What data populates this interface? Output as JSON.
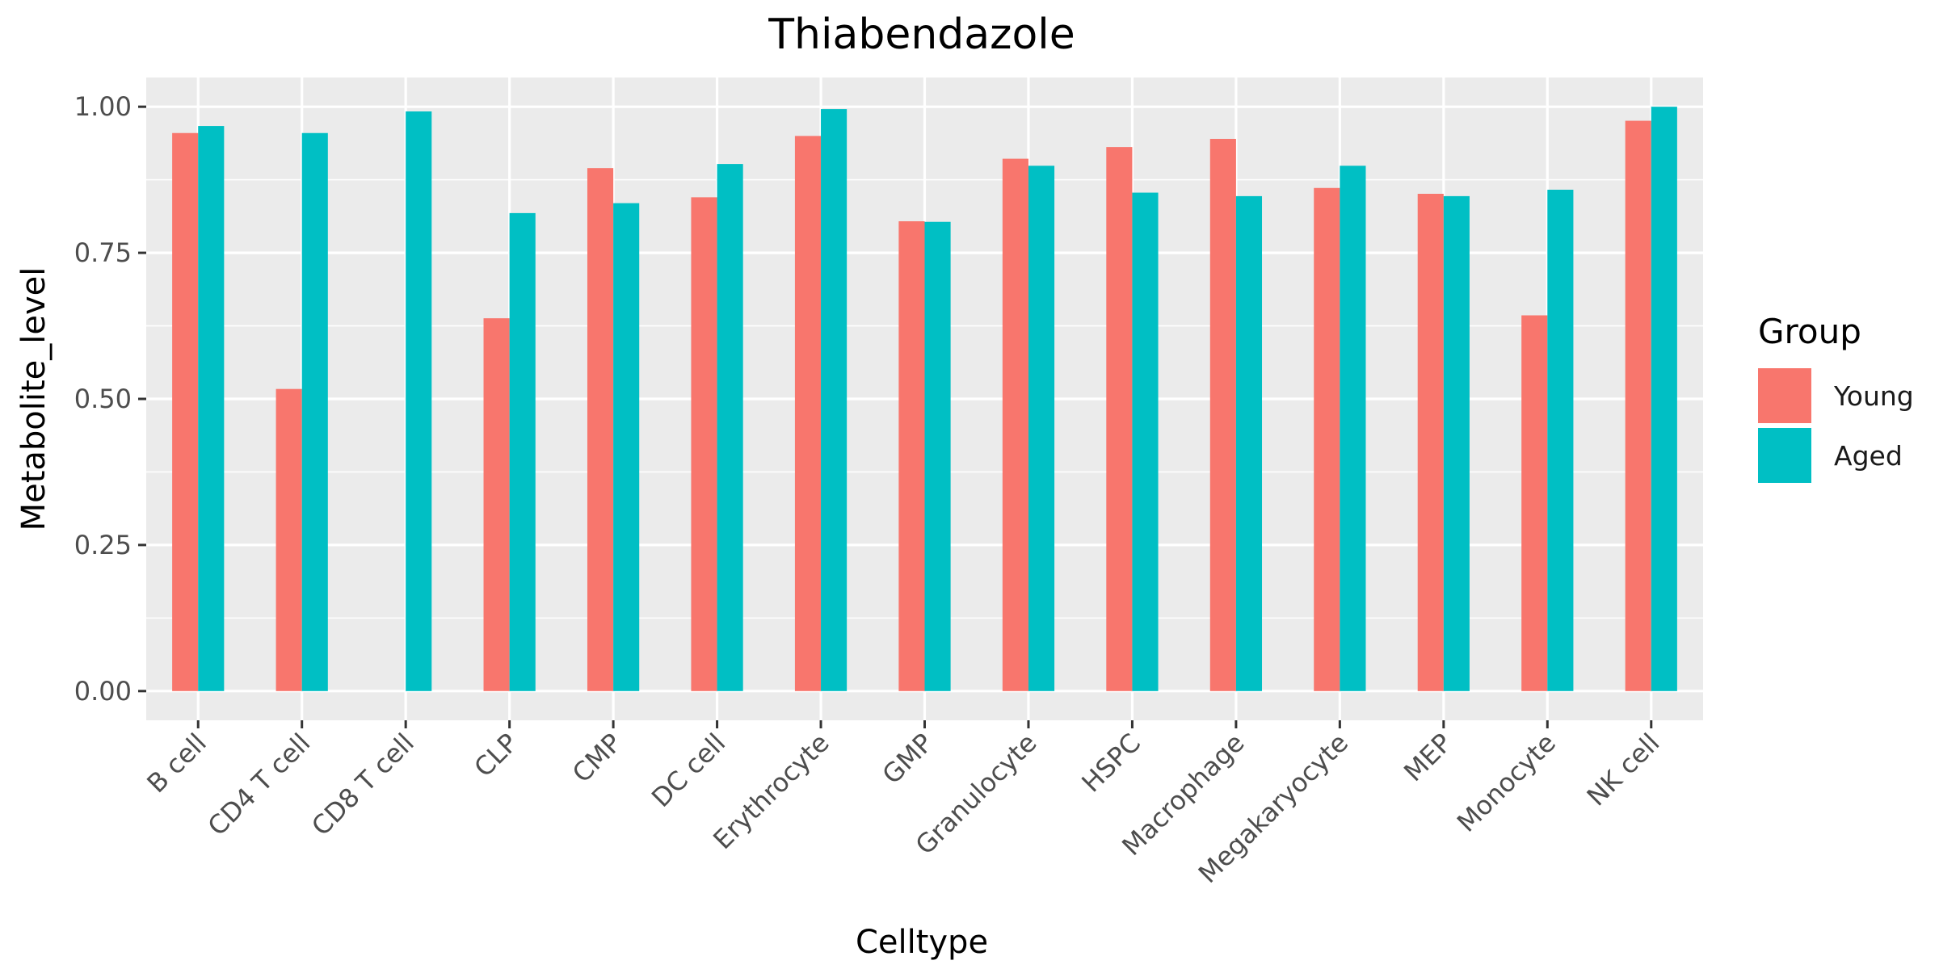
{
  "chart_data": {
    "type": "bar",
    "title": "Thiabendazole",
    "xlabel": "Celltype",
    "ylabel": "Metabolite_level",
    "categories": [
      "B cell",
      "CD4 T cell",
      "CD8 T cell",
      "CLP",
      "CMP",
      "DC cell",
      "Erythrocyte",
      "GMP",
      "Granulocyte",
      "HSPC",
      "Macrophage",
      "Megakaryocyte",
      "MEP",
      "Monocyte",
      "NK cell"
    ],
    "series": [
      {
        "name": "Young",
        "color": "#F8766D",
        "values": [
          0.955,
          0.517,
          null,
          0.638,
          0.895,
          0.845,
          0.95,
          0.804,
          0.911,
          0.931,
          0.945,
          0.861,
          0.851,
          0.643,
          0.976
        ]
      },
      {
        "name": "Aged",
        "color": "#00BFC4",
        "values": [
          0.967,
          0.955,
          0.992,
          0.818,
          0.835,
          0.902,
          0.996,
          0.803,
          0.899,
          0.853,
          0.847,
          0.899,
          0.847,
          0.858,
          1.0
        ]
      }
    ],
    "ylim": [
      -0.05,
      1.05
    ],
    "yticks": [
      0.0,
      0.25,
      0.5,
      0.75,
      1.0
    ],
    "ytick_labels": [
      "0.00",
      "0.25",
      "0.50",
      "0.75",
      "1.00"
    ],
    "grid": true,
    "legend": {
      "title": "Group",
      "position": "right"
    },
    "panel_background": "#EBEBEB",
    "gridline_color": "#FFFFFF"
  }
}
